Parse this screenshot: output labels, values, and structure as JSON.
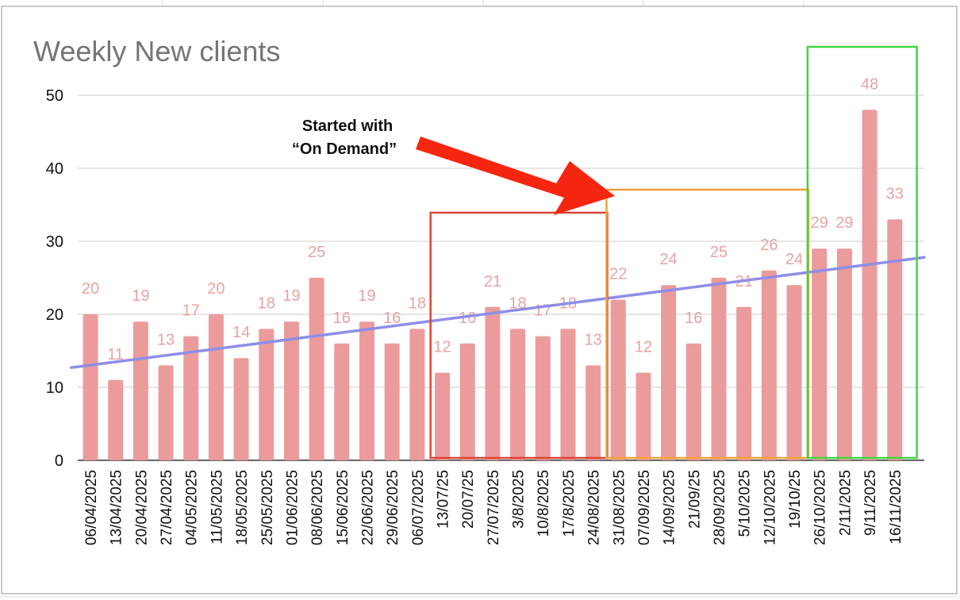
{
  "chart_data": {
    "type": "bar",
    "title": "Weekly New clients",
    "xlabel": "",
    "ylabel": "",
    "ylim": [
      0,
      50
    ],
    "yticks": [
      0,
      10,
      20,
      30,
      40,
      50
    ],
    "grid": true,
    "categories": [
      "06/04/2025",
      "13/04/2025",
      "20/04/2025",
      "27/04/2025",
      "04/05/2025",
      "11/05/2025",
      "18/05/2025",
      "25/05/2025",
      "01/06/2025",
      "08/06/2025",
      "15/06/2025",
      "22/06/2025",
      "29/06/2025",
      "06/07/2025",
      "13/07/25",
      "20/07/25",
      "27/07/2025",
      "3/8/2025",
      "10/8/2025",
      "17/8/2025",
      "24/08/2025",
      "31/08/2025",
      "07/09/2025",
      "14/09/2025",
      "21/09/25",
      "28/09/2025",
      "5/10/2025",
      "12/10/2025",
      "19/10/25",
      "26/10/2025",
      "2/11/2025",
      "9/11/2025",
      "16/11/2025"
    ],
    "values": [
      20,
      11,
      19,
      13,
      17,
      20,
      14,
      18,
      19,
      25,
      16,
      19,
      16,
      18,
      12,
      16,
      21,
      18,
      17,
      18,
      13,
      22,
      12,
      24,
      16,
      25,
      21,
      26,
      24,
      29,
      29,
      48,
      33
    ],
    "data_labels": true,
    "trendline": {
      "type": "linear",
      "start": 12.7,
      "end": 27.8,
      "color": "#8e8ee8"
    },
    "colors": {
      "bar": "#eb9b9b",
      "label": "#e8a3a3",
      "title": "#757575"
    },
    "annotation": {
      "lines": [
        "Started with",
        "“On Demand”"
      ],
      "arrow_color": "#f5260f"
    },
    "highlight_boxes": [
      {
        "from": "13/07/25",
        "to": "24/08/2025",
        "color": "#d94635"
      },
      {
        "from": "31/08/2025",
        "to": "19/10/25",
        "color": "#f0a33a"
      },
      {
        "from": "26/10/2025",
        "to": "16/11/2025",
        "color": "#3ed83e"
      }
    ]
  }
}
